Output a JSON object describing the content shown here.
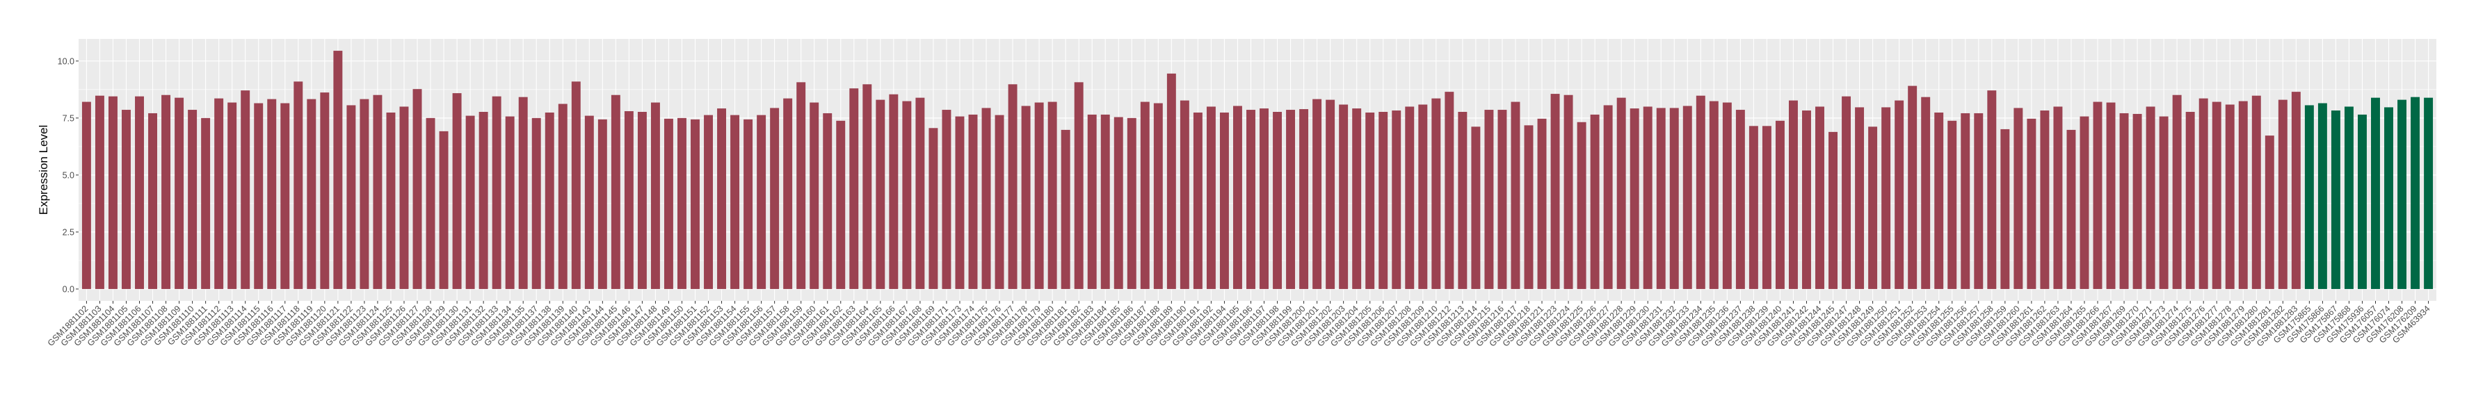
{
  "chart_data": {
    "type": "bar",
    "title": "",
    "xlabel": "",
    "ylabel": "Expression Level",
    "ylim": [
      -0.52,
      10.97
    ],
    "yticks": [
      0,
      2.5,
      5,
      7.5,
      10
    ],
    "ytick_labels": [
      "0.0",
      "2.5",
      "5.0",
      "7.5",
      "10.0"
    ],
    "grid": true,
    "legend": "none",
    "colors": {
      "group1": "#9B4251",
      "group2": "#006845",
      "panel": "#EBEBEB",
      "grid": "#FFFFFF"
    },
    "categories": [
      "GSM1881102",
      "GSM1881103",
      "GSM1881104",
      "GSM1881105",
      "GSM1881106",
      "GSM1881107",
      "GSM1881108",
      "GSM1881109",
      "GSM1881110",
      "GSM1881111",
      "GSM1881112",
      "GSM1881113",
      "GSM1881114",
      "GSM1881115",
      "GSM1881116",
      "GSM1881117",
      "GSM1881118",
      "GSM1881119",
      "GSM1881120",
      "GSM1881121",
      "GSM1881122",
      "GSM1881123",
      "GSM1881124",
      "GSM1881125",
      "GSM1881126",
      "GSM1881127",
      "GSM1881128",
      "GSM1881129",
      "GSM1881130",
      "GSM1881131",
      "GSM1881132",
      "GSM1881133",
      "GSM1881134",
      "GSM1881135",
      "GSM1881137",
      "GSM1881138",
      "GSM1881139",
      "GSM1881140",
      "GSM1881143",
      "GSM1881144",
      "GSM1881145",
      "GSM1881146",
      "GSM1881147",
      "GSM1881148",
      "GSM1881149",
      "GSM1881150",
      "GSM1881151",
      "GSM1881152",
      "GSM1881153",
      "GSM1881154",
      "GSM1881155",
      "GSM1881156",
      "GSM1881157",
      "GSM1881158",
      "GSM1881159",
      "GSM1881160",
      "GSM1881161",
      "GSM1881162",
      "GSM1881163",
      "GSM1881164",
      "GSM1881165",
      "GSM1881166",
      "GSM1881167",
      "GSM1881168",
      "GSM1881169",
      "GSM1881171",
      "GSM1881173",
      "GSM1881174",
      "GSM1881175",
      "GSM1881176",
      "GSM1881177",
      "GSM1881178",
      "GSM1881179",
      "GSM1881180",
      "GSM1881181",
      "GSM1881182",
      "GSM1881183",
      "GSM1881184",
      "GSM1881185",
      "GSM1881186",
      "GSM1881187",
      "GSM1881188",
      "GSM1881189",
      "GSM1881190",
      "GSM1881191",
      "GSM1881192",
      "GSM1881194",
      "GSM1881195",
      "GSM1881196",
      "GSM1881197",
      "GSM1881198",
      "GSM1881199",
      "GSM1881200",
      "GSM1881201",
      "GSM1881202",
      "GSM1881203",
      "GSM1881204",
      "GSM1881205",
      "GSM1881206",
      "GSM1881207",
      "GSM1881208",
      "GSM1881209",
      "GSM1881210",
      "GSM1881212",
      "GSM1881213",
      "GSM1881214",
      "GSM1881215",
      "GSM1881216",
      "GSM1881217",
      "GSM1881218",
      "GSM1881221",
      "GSM1881223",
      "GSM1881224",
      "GSM1881225",
      "GSM1881226",
      "GSM1881227",
      "GSM1881228",
      "GSM1881229",
      "GSM1881230",
      "GSM1881231",
      "GSM1881232",
      "GSM1881233",
      "GSM1881234",
      "GSM1881235",
      "GSM1881236",
      "GSM1881237",
      "GSM1881238",
      "GSM1881239",
      "GSM1881240",
      "GSM1881241",
      "GSM1881242",
      "GSM1881244",
      "GSM1881245",
      "GSM1881247",
      "GSM1881248",
      "GSM1881249",
      "GSM1881250",
      "GSM1881251",
      "GSM1881252",
      "GSM1881253",
      "GSM1881254",
      "GSM1881255",
      "GSM1881256",
      "GSM1881257",
      "GSM1881258",
      "GSM1881259",
      "GSM1881260",
      "GSM1881261",
      "GSM1881262",
      "GSM1881263",
      "GSM1881264",
      "GSM1881265",
      "GSM1881266",
      "GSM1881267",
      "GSM1881269",
      "GSM1881270",
      "GSM1881271",
      "GSM1881273",
      "GSM1881274",
      "GSM1881275",
      "GSM1881276",
      "GSM1881277",
      "GSM1881278",
      "GSM1881279",
      "GSM1881280",
      "GSM1881281",
      "GSM1881282",
      "GSM1881283",
      "GSM175865",
      "GSM175866",
      "GSM175867",
      "GSM175868",
      "GSM175936",
      "GSM176057",
      "GSM176074",
      "GSM176208",
      "GSM176209",
      "GSM463934"
    ],
    "values": [
      8.21,
      8.48,
      8.45,
      7.86,
      8.45,
      7.71,
      8.51,
      8.39,
      7.86,
      7.5,
      8.36,
      8.18,
      8.71,
      8.15,
      8.33,
      8.15,
      9.1,
      8.33,
      8.62,
      10.45,
      8.06,
      8.33,
      8.51,
      7.74,
      8.0,
      8.77,
      7.5,
      6.92,
      8.59,
      7.6,
      7.77,
      8.45,
      7.57,
      8.42,
      7.5,
      7.74,
      8.12,
      9.1,
      7.6,
      7.44,
      8.51,
      7.8,
      7.77,
      8.18,
      7.47,
      7.5,
      7.44,
      7.63,
      7.92,
      7.63,
      7.44,
      7.63,
      7.94,
      8.36,
      9.07,
      8.18,
      7.71,
      7.38,
      8.8,
      8.98,
      8.3,
      8.54,
      8.24,
      8.39,
      7.06,
      7.86,
      7.57,
      7.65,
      7.94,
      7.63,
      8.98,
      8.03,
      8.18,
      8.21,
      6.98,
      9.07,
      7.65,
      7.65,
      7.54,
      7.5,
      8.21,
      8.15,
      9.45,
      8.27,
      7.74,
      8.0,
      7.74,
      8.03,
      7.86,
      7.92,
      7.77,
      7.86,
      7.89,
      8.33,
      8.3,
      8.09,
      7.92,
      7.74,
      7.77,
      7.83,
      8.0,
      8.09,
      8.36,
      8.65,
      7.77,
      7.12,
      7.86,
      7.86,
      8.21,
      7.18,
      7.47,
      8.56,
      8.51,
      7.32,
      7.65,
      8.06,
      8.39,
      7.92,
      8.0,
      7.94,
      7.94,
      8.03,
      8.48,
      8.24,
      8.18,
      7.86,
      7.15,
      7.15,
      7.38,
      8.27,
      7.83,
      8.0,
      6.89,
      8.45,
      7.97,
      7.12,
      7.97,
      8.27,
      8.91,
      8.42,
      7.74,
      7.38,
      7.71,
      7.71,
      8.71,
      7.01,
      7.94,
      7.47,
      7.83,
      8.0,
      6.98,
      7.57,
      8.21,
      8.18,
      7.71,
      7.68,
      8.0,
      7.57,
      8.51,
      7.77,
      8.36,
      8.21,
      8.09,
      8.24,
      8.48,
      6.73,
      8.3,
      8.65,
      8.06,
      8.15,
      7.83,
      8.0,
      7.65,
      8.39,
      7.97,
      8.3,
      8.42,
      8.39
    ],
    "groups": [
      1,
      1,
      1,
      1,
      1,
      1,
      1,
      1,
      1,
      1,
      1,
      1,
      1,
      1,
      1,
      1,
      1,
      1,
      1,
      1,
      1,
      1,
      1,
      1,
      1,
      1,
      1,
      1,
      1,
      1,
      1,
      1,
      1,
      1,
      1,
      1,
      1,
      1,
      1,
      1,
      1,
      1,
      1,
      1,
      1,
      1,
      1,
      1,
      1,
      1,
      1,
      1,
      1,
      1,
      1,
      1,
      1,
      1,
      1,
      1,
      1,
      1,
      1,
      1,
      1,
      1,
      1,
      1,
      1,
      1,
      1,
      1,
      1,
      1,
      1,
      1,
      1,
      1,
      1,
      1,
      1,
      1,
      1,
      1,
      1,
      1,
      1,
      1,
      1,
      1,
      1,
      1,
      1,
      1,
      1,
      1,
      1,
      1,
      1,
      1,
      1,
      1,
      1,
      1,
      1,
      1,
      1,
      1,
      1,
      1,
      1,
      1,
      1,
      1,
      1,
      1,
      1,
      1,
      1,
      1,
      1,
      1,
      1,
      1,
      1,
      1,
      1,
      1,
      1,
      1,
      1,
      1,
      1,
      1,
      1,
      1,
      1,
      1,
      1,
      1,
      1,
      1,
      1,
      1,
      1,
      1,
      1,
      1,
      1,
      1,
      1,
      1,
      1,
      1,
      1,
      1,
      1,
      1,
      1,
      1,
      1,
      1,
      1,
      1,
      1,
      1,
      1,
      1,
      2,
      2,
      2,
      2,
      2,
      2,
      2,
      2,
      2,
      2
    ]
  }
}
